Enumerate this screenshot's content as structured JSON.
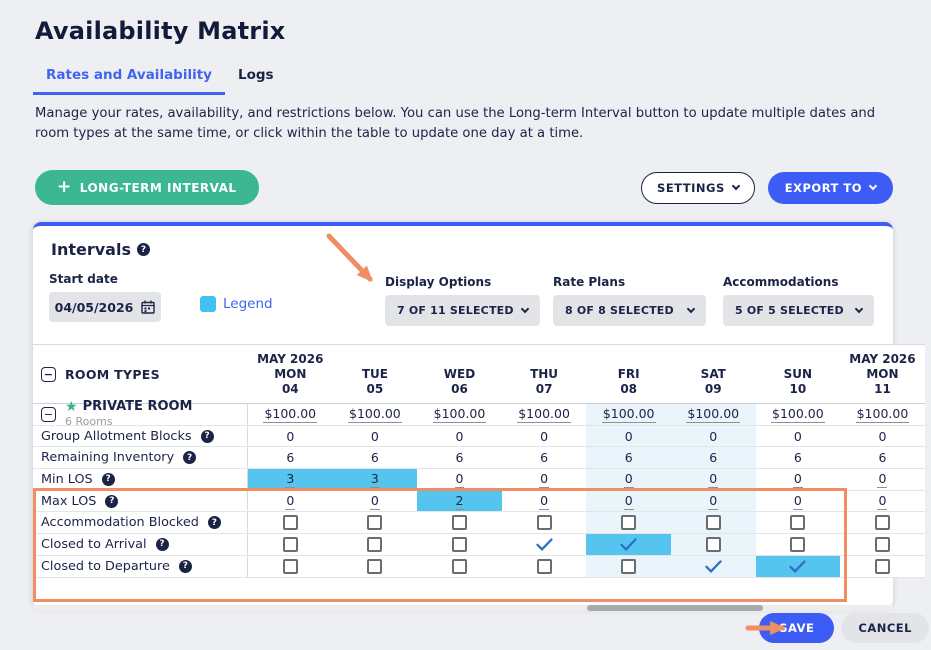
{
  "page": {
    "title": "Availability Matrix",
    "description": "Manage your rates, availability, and restrictions below. You can use the Long-term Interval button to update multiple dates and room types at the same time, or click within the table to update one day at a time."
  },
  "tabs": [
    {
      "label": "Rates and Availability",
      "active": true
    },
    {
      "label": "Logs",
      "active": false
    }
  ],
  "toolbar": {
    "long_term_interval": "LONG-TERM INTERVAL",
    "settings": "SETTINGS",
    "export_to": "EXPORT TO"
  },
  "intervals": {
    "heading": "Intervals",
    "start_date_label": "Start date",
    "start_date_value": "04/05/2026",
    "legend_label": "Legend",
    "filters": [
      {
        "label": "Display Options",
        "value": "7 OF 11 SELECTED"
      },
      {
        "label": "Rate Plans",
        "value": "8 OF 8 SELECTED"
      },
      {
        "label": "Accommodations",
        "value": "5 OF 5 SELECTED"
      }
    ]
  },
  "table": {
    "room_types_header": "ROOM TYPES",
    "columns": [
      {
        "month": "MAY 2026",
        "dow": "MON",
        "day": "04",
        "weekend": false
      },
      {
        "month": "",
        "dow": "TUE",
        "day": "05",
        "weekend": false
      },
      {
        "month": "",
        "dow": "WED",
        "day": "06",
        "weekend": false
      },
      {
        "month": "",
        "dow": "THU",
        "day": "07",
        "weekend": false
      },
      {
        "month": "",
        "dow": "FRI",
        "day": "08",
        "weekend": true
      },
      {
        "month": "",
        "dow": "SAT",
        "day": "09",
        "weekend": true
      },
      {
        "month": "",
        "dow": "SUN",
        "day": "10",
        "weekend": false
      },
      {
        "month": "MAY 2026",
        "dow": "MON",
        "day": "11",
        "weekend": false
      }
    ],
    "room": {
      "name": "PRIVATE ROOM",
      "subtitle": "6 Rooms",
      "rates": [
        "$100.00",
        "$100.00",
        "$100.00",
        "$100.00",
        "$100.00",
        "$100.00",
        "$100.00",
        "$100.00"
      ]
    },
    "rows": [
      {
        "key": "group-allotment-blocks",
        "label": "Group Allotment Blocks",
        "type": "text",
        "values": [
          "0",
          "0",
          "0",
          "0",
          "0",
          "0",
          "0",
          "0"
        ],
        "selected": [
          false,
          false,
          false,
          false,
          false,
          false,
          false,
          false
        ]
      },
      {
        "key": "remaining-inventory",
        "label": "Remaining Inventory",
        "type": "text",
        "values": [
          "6",
          "6",
          "6",
          "6",
          "6",
          "6",
          "6",
          "6"
        ],
        "selected": [
          false,
          false,
          false,
          false,
          false,
          false,
          false,
          false
        ]
      },
      {
        "key": "min-los",
        "label": "Min LOS",
        "type": "link",
        "values": [
          "3",
          "3",
          "0",
          "0",
          "0",
          "0",
          "0",
          "0"
        ],
        "selected": [
          true,
          true,
          false,
          false,
          false,
          false,
          false,
          false
        ]
      },
      {
        "key": "max-los",
        "label": "Max LOS",
        "type": "link",
        "values": [
          "0",
          "0",
          "2",
          "0",
          "0",
          "0",
          "0",
          "0"
        ],
        "selected": [
          false,
          false,
          true,
          false,
          false,
          false,
          false,
          false
        ]
      },
      {
        "key": "accommodation-blocked",
        "label": "Accommodation Blocked",
        "type": "checkbox",
        "checked": [
          false,
          false,
          false,
          false,
          false,
          false,
          false,
          false
        ],
        "selected": [
          false,
          false,
          false,
          false,
          false,
          false,
          false,
          false
        ]
      },
      {
        "key": "closed-to-arrival",
        "label": "Closed to Arrival",
        "type": "checkbox",
        "checked": [
          false,
          false,
          false,
          true,
          true,
          false,
          false,
          false
        ],
        "selected": [
          false,
          false,
          false,
          false,
          true,
          false,
          false,
          false
        ]
      },
      {
        "key": "closed-to-departure",
        "label": "Closed to Departure",
        "type": "checkbox",
        "checked": [
          false,
          false,
          false,
          false,
          false,
          true,
          true,
          false
        ],
        "selected": [
          false,
          false,
          false,
          false,
          false,
          false,
          true,
          false
        ]
      }
    ]
  },
  "footer": {
    "save_label": "SAVE",
    "cancel_label": "CANCEL"
  },
  "colors": {
    "accent_blue": "#3d5cf5",
    "tab_blue": "#4164f0",
    "navy_text": "#1b2447",
    "button_green": "#3bb791",
    "star_green": "#35b47c",
    "legend_cyan": "#3fc3f0",
    "cell_highlight_cyan": "#55c4ef",
    "weekend_column_bg": "#e9f4fb",
    "check_blue": "#2d71c4",
    "annotation_orange": "#ef8e63",
    "input_gray": "#e3e4e8"
  }
}
